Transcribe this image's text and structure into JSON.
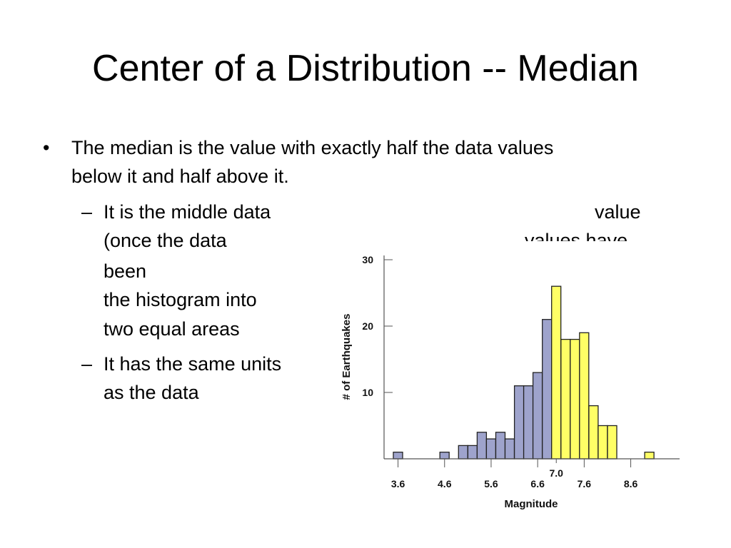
{
  "slide": {
    "title": "Center of a Distribution -- Median",
    "bullet": {
      "line1": "The median is the value with exactly half the data values",
      "line2": "below it and half above it."
    },
    "sub1": {
      "left_lines": [
        "It is the middle data",
        "(once the data",
        "been",
        "the histogram into",
        "two equal areas"
      ],
      "right_lines": [
        "value",
        "values have"
      ]
    },
    "sub2": {
      "lines": [
        "It has the same units",
        "as the data"
      ]
    }
  },
  "chart_data": {
    "type": "bar",
    "xlabel": "Magnitude",
    "ylabel": "# of Earthquakes",
    "x_tick_labels": [
      "3.6",
      "4.6",
      "5.6",
      "6.6",
      "7.0",
      "7.6",
      "8.6"
    ],
    "y_tick_labels": [
      "10",
      "20",
      "30"
    ],
    "ylim": [
      0,
      30
    ],
    "median": 7.0,
    "bin_width": 0.2,
    "bins": [
      {
        "x": 3.6,
        "count": 1
      },
      {
        "x": 4.6,
        "count": 1
      },
      {
        "x": 5.0,
        "count": 2
      },
      {
        "x": 5.2,
        "count": 2
      },
      {
        "x": 5.4,
        "count": 4
      },
      {
        "x": 5.6,
        "count": 3
      },
      {
        "x": 5.8,
        "count": 4
      },
      {
        "x": 6.0,
        "count": 3
      },
      {
        "x": 6.2,
        "count": 11
      },
      {
        "x": 6.4,
        "count": 11
      },
      {
        "x": 6.6,
        "count": 13
      },
      {
        "x": 6.8,
        "count": 21
      },
      {
        "x": 7.0,
        "count": 26
      },
      {
        "x": 7.2,
        "count": 18
      },
      {
        "x": 7.4,
        "count": 18
      },
      {
        "x": 7.6,
        "count": 19
      },
      {
        "x": 7.8,
        "count": 8
      },
      {
        "x": 8.0,
        "count": 5
      },
      {
        "x": 8.2,
        "count": 5
      },
      {
        "x": 9.0,
        "count": 1
      }
    ],
    "colors": {
      "below_median": "#9ea3cc",
      "above_median": "#ffff66",
      "outline": "#222222"
    }
  }
}
